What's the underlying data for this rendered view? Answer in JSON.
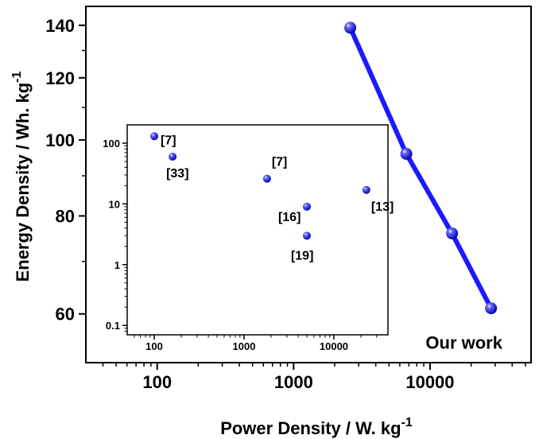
{
  "chart_data": [
    {
      "type": "line",
      "xscale": "log",
      "yscale": "log",
      "xlim": [
        30,
        55000
      ],
      "ylim": [
        52,
        148
      ],
      "xticks": [
        100,
        1000,
        10000
      ],
      "xtick_labels": [
        "100",
        "1000",
        "10000"
      ],
      "yticks": [
        60,
        80,
        100,
        120,
        140
      ],
      "ytick_labels": [
        "60",
        "80",
        "100",
        "120",
        "140"
      ],
      "xlabel": "Power Density / W. kg",
      "xlabel_sup": "-1",
      "ylabel": "Energy Density / Wh. kg",
      "ylabel_sup": "-1",
      "grid": false,
      "series": [
        {
          "x": [
            2600,
            6700,
            14500,
            28000
          ],
          "y": [
            139,
            96,
            76,
            61
          ],
          "color": "#1a1aff"
        }
      ],
      "annotations": [
        {
          "text": "Our work",
          "x": 28000,
          "y": 57
        }
      ]
    },
    {
      "type": "scatter",
      "xscale": "log",
      "yscale": "log",
      "xlim": [
        50,
        40000
      ],
      "ylim": [
        0.07,
        200
      ],
      "xticks": [
        100,
        1000,
        10000
      ],
      "xtick_labels": [
        "100",
        "1000",
        "10000"
      ],
      "yticks": [
        0.1,
        1,
        10,
        100
      ],
      "ytick_labels": [
        "0.1",
        "1",
        "10",
        "100"
      ],
      "grid": false,
      "points": [
        {
          "x": 100,
          "y": 130,
          "label": "[7]"
        },
        {
          "x": 160,
          "y": 60,
          "label": "[33]"
        },
        {
          "x": 1800,
          "y": 26,
          "label": "[7]"
        },
        {
          "x": 5000,
          "y": 9,
          "label": "[16]"
        },
        {
          "x": 5000,
          "y": 3,
          "label": "[19]"
        },
        {
          "x": 23000,
          "y": 17,
          "label": "[13]"
        }
      ],
      "color": "#1a1aff"
    }
  ]
}
